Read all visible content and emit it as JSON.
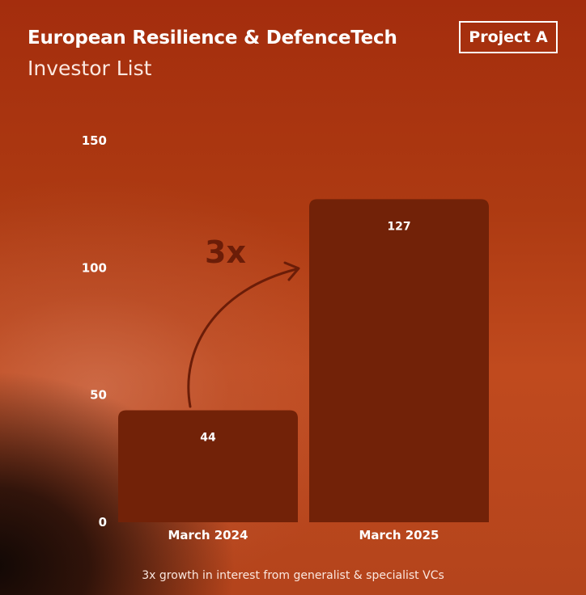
{
  "header": {
    "title": "European Resilience & DefenceTech",
    "subtitle": "Investor List",
    "badge": "Project A"
  },
  "caption": "3x growth in interest from generalist & specialist VCs",
  "colors": {
    "bar": "#722208",
    "annotation": "#6b1d08",
    "text": "#ffffff"
  },
  "chart_data": {
    "type": "bar",
    "categories": [
      "March 2024",
      "March 2025"
    ],
    "values": [
      44,
      127
    ],
    "data_labels": [
      "44",
      "127"
    ],
    "ylim": [
      0,
      150
    ],
    "yticks": [
      0,
      50,
      100,
      150
    ],
    "title": "",
    "xlabel": "",
    "ylabel": "",
    "grid": false,
    "annotation": {
      "text": "3x",
      "arrow": "curved arrow from first bar toward second bar"
    }
  }
}
